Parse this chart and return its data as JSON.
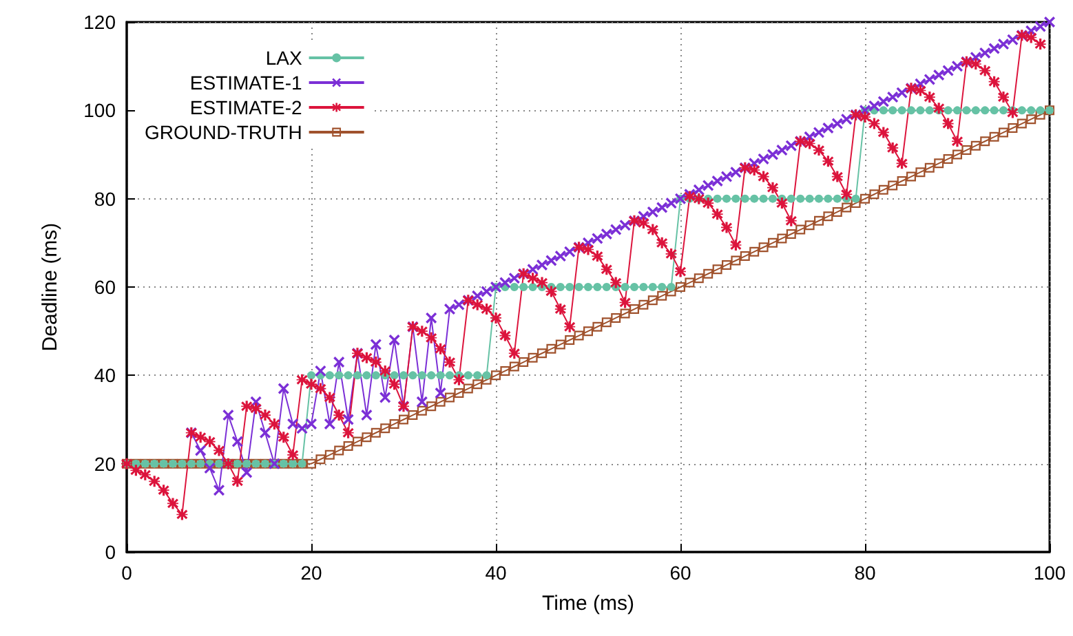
{
  "chart_data": {
    "type": "line",
    "xlabel": "Time (ms)",
    "ylabel": "Deadline (ms)",
    "x": [
      0,
      1,
      2,
      3,
      4,
      5,
      6,
      7,
      8,
      9,
      10,
      11,
      12,
      13,
      14,
      15,
      16,
      17,
      18,
      19,
      20,
      21,
      22,
      23,
      24,
      25,
      26,
      27,
      28,
      29,
      30,
      31,
      32,
      33,
      34,
      35,
      36,
      37,
      38,
      39,
      40,
      41,
      42,
      43,
      44,
      45,
      46,
      47,
      48,
      49,
      50,
      51,
      52,
      53,
      54,
      55,
      56,
      57,
      58,
      59,
      60,
      61,
      62,
      63,
      64,
      65,
      66,
      67,
      68,
      69,
      70,
      71,
      72,
      73,
      74,
      75,
      76,
      77,
      78,
      79,
      80,
      81,
      82,
      83,
      84,
      85,
      86,
      87,
      88,
      89,
      90,
      91,
      92,
      93,
      94,
      95,
      96,
      97,
      98,
      99,
      100
    ],
    "series": [
      {
        "name": "LAX",
        "color": "#66c2a5",
        "marker": "circle",
        "values": [
          20,
          20,
          20,
          20,
          20,
          20,
          20,
          20,
          20,
          20,
          20,
          20,
          20,
          20,
          20,
          20,
          20,
          20,
          20,
          20,
          40,
          40,
          40,
          40,
          40,
          40,
          40,
          40,
          40,
          40,
          40,
          40,
          40,
          40,
          40,
          40,
          40,
          40,
          40,
          40,
          60,
          60,
          60,
          60,
          60,
          60,
          60,
          60,
          60,
          60,
          60,
          60,
          60,
          60,
          60,
          60,
          60,
          60,
          60,
          60,
          80,
          80,
          80,
          80,
          80,
          80,
          80,
          80,
          80,
          80,
          80,
          80,
          80,
          80,
          80,
          80,
          80,
          80,
          80,
          80,
          100,
          100,
          100,
          100,
          100,
          100,
          100,
          100,
          100,
          100,
          100,
          100,
          100,
          100,
          100,
          100,
          100,
          100,
          100,
          100,
          100
        ]
      },
      {
        "name": "ESTIMATE-1",
        "color": "#7b2fd6",
        "marker": "cross",
        "values": [
          null,
          null,
          null,
          null,
          null,
          null,
          null,
          27,
          23,
          19,
          14,
          31,
          25,
          18,
          34,
          27,
          20,
          37,
          29,
          28,
          29,
          41,
          29,
          43,
          30,
          45,
          31,
          47,
          35,
          48,
          33,
          51,
          34,
          53,
          36,
          55,
          56,
          57,
          58,
          59,
          60,
          61,
          62,
          63,
          64,
          65,
          66,
          67,
          68,
          69,
          70,
          71,
          72,
          73,
          74,
          75,
          76,
          77,
          78,
          79,
          80,
          81,
          82,
          83,
          84,
          85,
          86,
          87,
          88,
          89,
          90,
          91,
          92,
          93,
          94,
          95,
          96,
          97,
          98,
          99,
          100,
          101,
          102,
          103,
          104,
          105,
          106,
          107,
          108,
          109,
          110,
          111,
          112,
          113,
          114,
          115,
          116,
          117,
          118,
          119,
          120
        ]
      },
      {
        "name": "ESTIMATE-2",
        "color": "#dc143c",
        "marker": "star",
        "values": [
          20,
          18.5,
          17.5,
          16,
          14,
          11,
          8.5,
          27,
          26,
          25,
          23,
          20,
          16,
          33,
          32.5,
          31,
          29,
          26,
          22,
          39,
          38,
          37,
          35,
          31,
          27,
          45,
          44,
          43,
          41,
          38,
          33,
          51,
          50,
          48.5,
          46,
          43,
          39,
          57,
          56,
          55,
          53,
          49,
          45,
          63,
          62,
          61,
          59,
          55,
          51,
          69,
          68.5,
          67,
          64,
          61,
          56.5,
          75,
          74.5,
          73,
          70,
          67.5,
          63.5,
          80.5,
          80,
          79,
          76.5,
          73.5,
          69.5,
          87,
          86.5,
          85,
          82.5,
          79,
          75,
          93,
          92.5,
          91,
          88.5,
          85,
          81,
          99,
          98.5,
          97,
          95,
          91.5,
          88,
          105,
          104.5,
          103,
          100.5,
          97,
          93,
          111,
          110.5,
          109,
          106.5,
          103,
          99.5,
          117,
          116.5,
          115,
          null
        ]
      },
      {
        "name": "GROUND-TRUTH",
        "color": "#a0522d",
        "marker": "square",
        "values": [
          20,
          20,
          20,
          20,
          20,
          20,
          20,
          20,
          20,
          20,
          20,
          20,
          20,
          20,
          20,
          20,
          20,
          20,
          20,
          20,
          20,
          21,
          22,
          23,
          24,
          25,
          26,
          27,
          28,
          29,
          30,
          31,
          32,
          33,
          34,
          35,
          36,
          37,
          38,
          39,
          40,
          41,
          42,
          43,
          44,
          45,
          46,
          47,
          48,
          49,
          50,
          51,
          52,
          53,
          54,
          55,
          56,
          57,
          58,
          59,
          60,
          61,
          62,
          63,
          64,
          65,
          66,
          67,
          68,
          69,
          70,
          71,
          72,
          73,
          74,
          75,
          76,
          77,
          78,
          79,
          80,
          81,
          82,
          83,
          84,
          85,
          86,
          87,
          88,
          89,
          90,
          91,
          92,
          93,
          94,
          95,
          96,
          97,
          98,
          99,
          100
        ]
      }
    ],
    "xlim": [
      0,
      100
    ],
    "xticks": [
      0,
      20,
      40,
      60,
      80,
      100
    ],
    "ylim": [
      0,
      120
    ],
    "yticks": [
      0,
      20,
      40,
      60,
      80,
      100,
      120
    ],
    "grid": true,
    "legend": "top left",
    "line_style": "solid"
  }
}
